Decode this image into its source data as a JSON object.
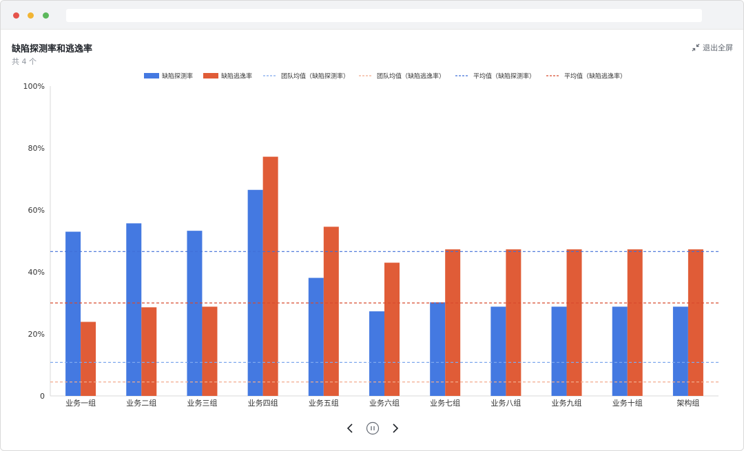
{
  "window": {
    "url": ""
  },
  "header": {
    "title": "缺陷探测率和逃逸率",
    "subtitle": "共 4 个",
    "exit_label": "退出全屏"
  },
  "colors": {
    "detect": "#4479e1",
    "escape": "#e05c37",
    "team_detect": "#7ea7ee",
    "team_escape": "#f2aa8c",
    "avg_detect": "#3f6fd8",
    "avg_escape": "#d84a2c"
  },
  "chart_data": {
    "type": "bar",
    "categories": [
      "业务一组",
      "业务二组",
      "业务三组",
      "业务四组",
      "业务五组",
      "业务六组",
      "业务七组",
      "业务八组",
      "业务九组",
      "业务十组",
      "架构组"
    ],
    "series": [
      {
        "name": "缺陷探测率",
        "values": [
          53,
          55.7,
          53.3,
          66.5,
          38.1,
          27.3,
          30.2,
          28.8,
          28.8,
          28.8,
          28.8
        ]
      },
      {
        "name": "缺陷逃逸率",
        "values": [
          23.9,
          28.6,
          28.8,
          77.2,
          54.6,
          43,
          47.3,
          47.3,
          47.3,
          47.3,
          47.3
        ]
      }
    ],
    "reference_lines": [
      {
        "name": "团队均值（缺陷探测率）",
        "value": 10.8
      },
      {
        "name": "团队均值（缺陷逃逸率）",
        "value": 4.5
      },
      {
        "name": "平均值（缺陷探测率）",
        "value": 46.6
      },
      {
        "name": "平均值（缺陷逃逸率）",
        "value": 30
      }
    ],
    "yticks": [
      "0",
      "20%",
      "40%",
      "60%",
      "80%",
      "100%"
    ],
    "ylim": [
      0,
      100
    ],
    "legend_position": "top-center",
    "grid": false
  }
}
